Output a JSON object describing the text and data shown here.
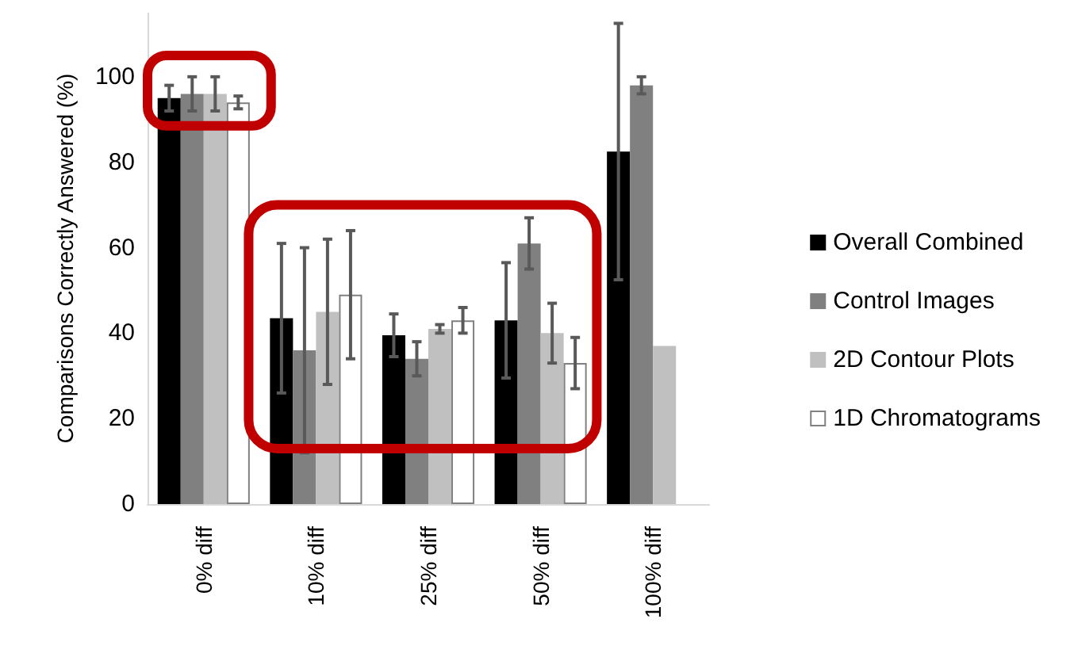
{
  "chart_data": {
    "type": "bar",
    "ylabel": "Comparisons Correctly Answered (%)",
    "categories": [
      "0% diff",
      "10% diff",
      "25% diff",
      "50% diff",
      "100% diff"
    ],
    "series": [
      {
        "name": "Overall Combined",
        "color": "#000000",
        "values": [
          95,
          43.5,
          39.5,
          43,
          82.5
        ],
        "errors": [
          3,
          17.5,
          5,
          13.5,
          30
        ]
      },
      {
        "name": "Control Images",
        "color": "#808080",
        "values": [
          96,
          36,
          34,
          61,
          98
        ],
        "errors": [
          4,
          24,
          4,
          6,
          2
        ]
      },
      {
        "name": "2D Contour Plots",
        "color": "#c0c0c0",
        "values": [
          96,
          45,
          41,
          40,
          37
        ],
        "errors": [
          4,
          17,
          1,
          7,
          null
        ]
      },
      {
        "name": "1D Chromatograms",
        "color": "#ffffff",
        "values": [
          94,
          49,
          43,
          33,
          null
        ],
        "errors": [
          1.5,
          15,
          3,
          6,
          null
        ]
      }
    ],
    "ylim": [
      0,
      115
    ],
    "yticks": [
      0,
      20,
      40,
      60,
      80,
      100
    ],
    "grid": false,
    "legend": "right"
  }
}
